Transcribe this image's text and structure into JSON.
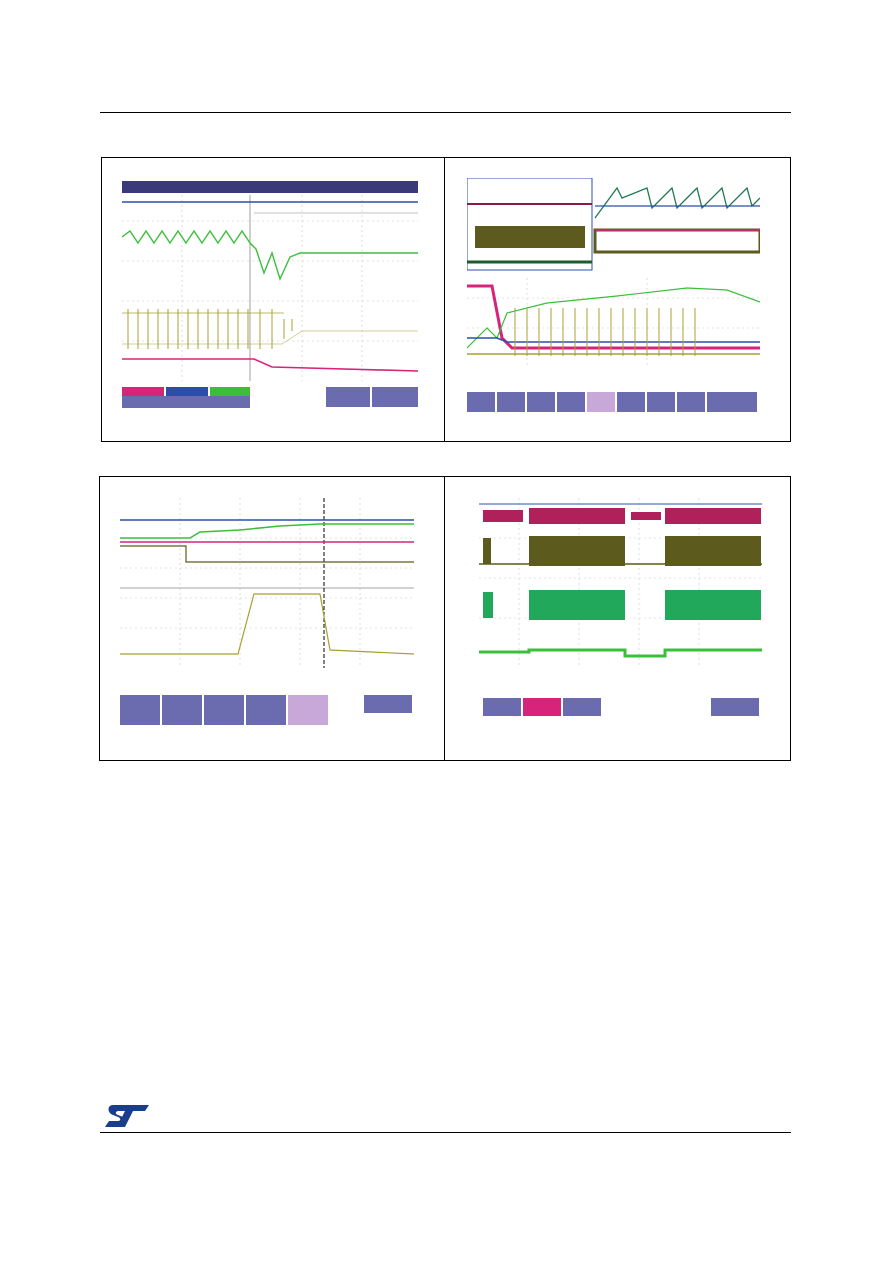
{
  "document": {
    "brand": {
      "logo": "st-logo",
      "color": "#1a3e8c"
    }
  },
  "figures": [
    {
      "id": "scope-1",
      "description_icon": "oscilloscope-capture"
    },
    {
      "id": "scope-2",
      "description_icon": "oscilloscope-capture"
    },
    {
      "id": "scope-3",
      "description_icon": "oscilloscope-capture"
    },
    {
      "id": "scope-4",
      "description_icon": "oscilloscope-capture"
    }
  ],
  "colors": {
    "trace_blue": "#2b4fa8",
    "trace_green": "#3bbf3b",
    "trace_yellow": "#a8a030",
    "trace_pink": "#d8237a",
    "trace_olive": "#5c5a1c",
    "menu_bar": "#3a3a7a",
    "panel_purple": "#6b6bb0"
  }
}
